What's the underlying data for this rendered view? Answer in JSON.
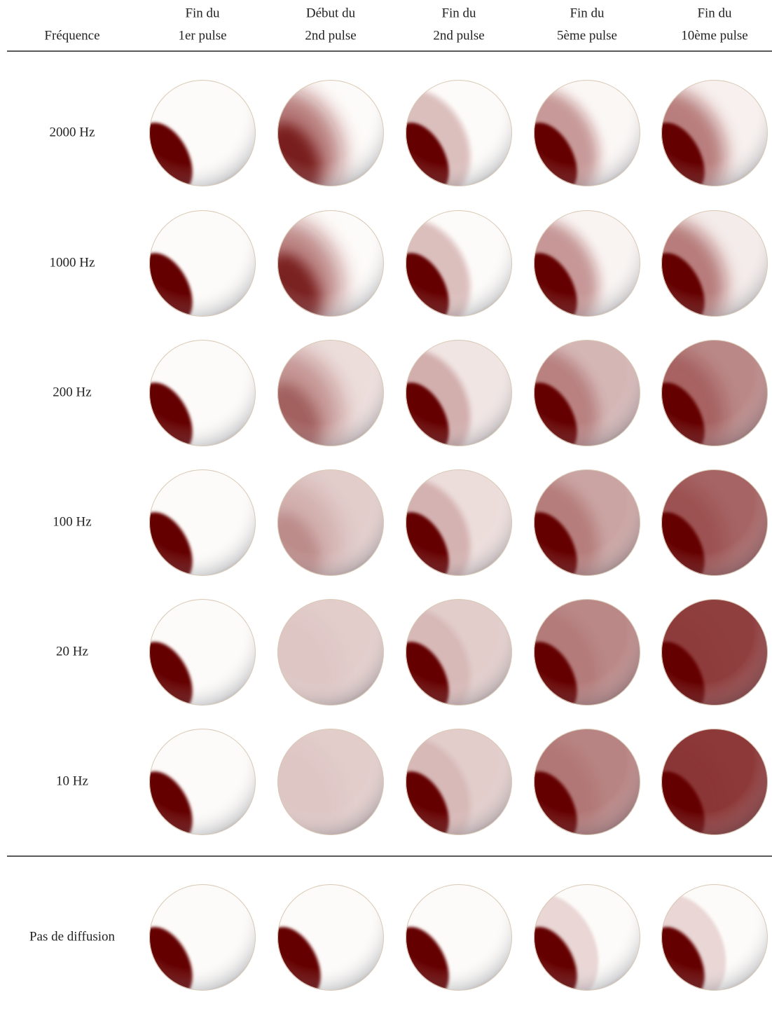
{
  "header": {
    "first": "Fréquence",
    "columns": [
      [
        "Fin du",
        "1er pulse"
      ],
      [
        "Début du",
        "2nd pulse"
      ],
      [
        "Fin du",
        "2nd pulse"
      ],
      [
        "Fin du",
        "5ème pulse"
      ],
      [
        "Fin du",
        "10ème pulse"
      ]
    ]
  },
  "rows": [
    "2000 Hz",
    "1000 Hz",
    "200 Hz",
    "100 Hz",
    "20 Hz",
    "10 Hz"
  ],
  "reference": "Pas de diffusion"
}
